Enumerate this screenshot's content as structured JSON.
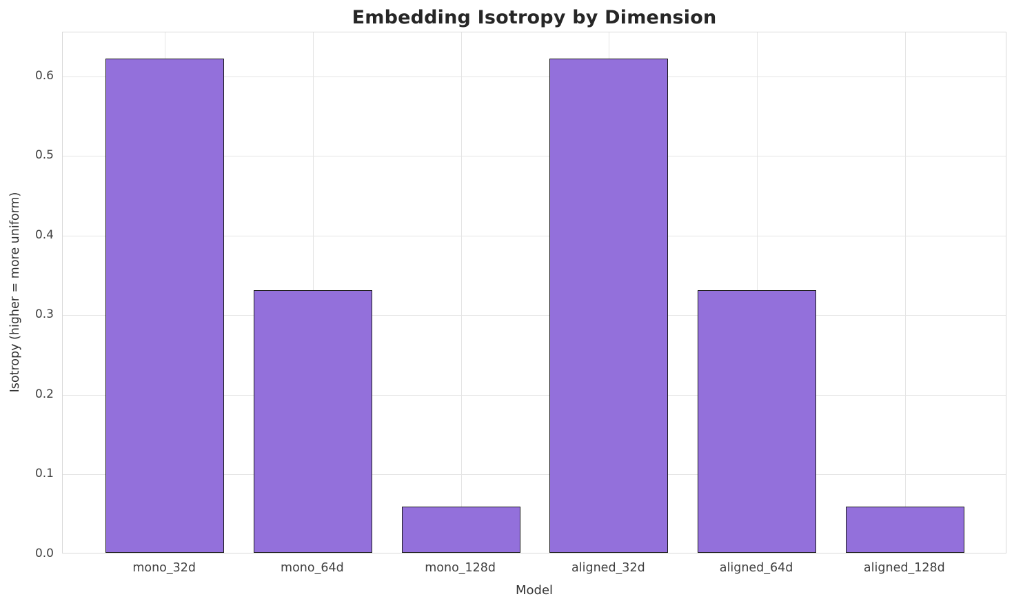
{
  "chart_data": {
    "type": "bar",
    "title": "Embedding Isotropy by Dimension",
    "xlabel": "Model",
    "ylabel": "Isotropy (higher = more uniform)",
    "categories": [
      "mono_32d",
      "mono_64d",
      "mono_128d",
      "aligned_32d",
      "aligned_64d",
      "aligned_128d"
    ],
    "values": [
      0.62,
      0.33,
      0.058,
      0.62,
      0.33,
      0.058
    ],
    "ylim": [
      0,
      0.655
    ],
    "yticks": [
      0.0,
      0.1,
      0.2,
      0.3,
      0.4,
      0.5,
      0.6
    ],
    "grid": true,
    "legend": "none",
    "bar_color": "#9370db",
    "bar_edge_color": "#1a1a1a"
  }
}
